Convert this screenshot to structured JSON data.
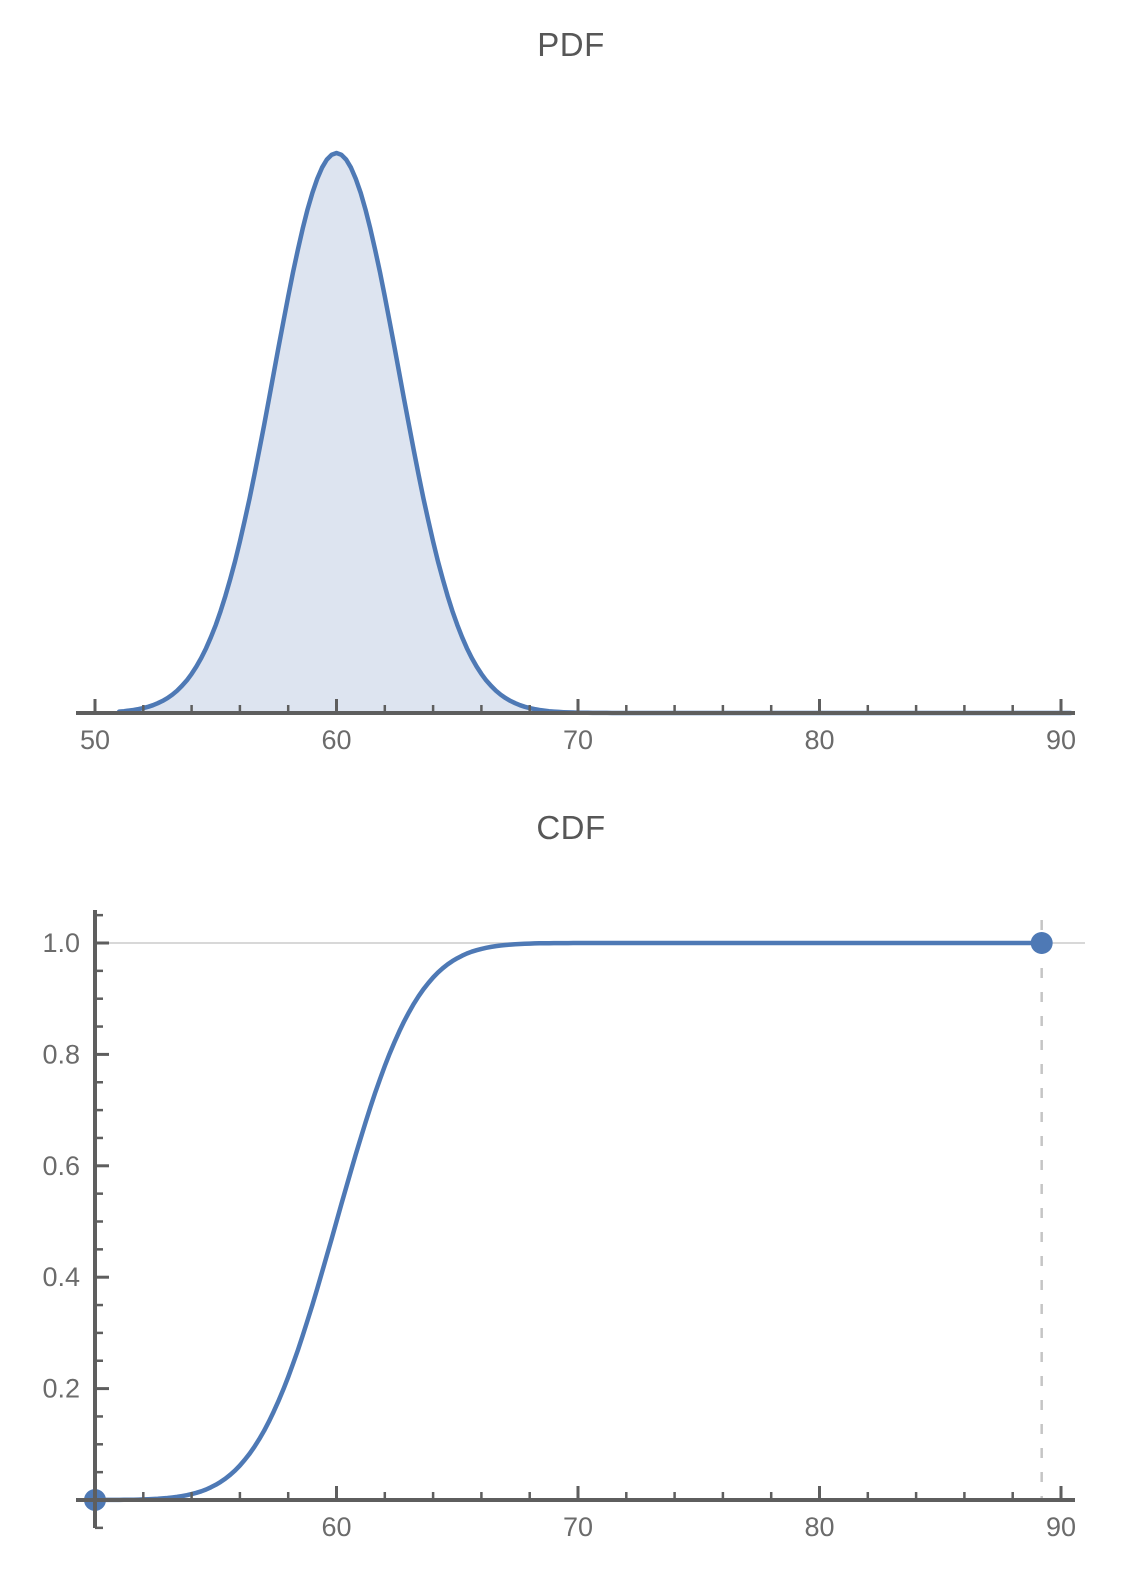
{
  "style": {
    "background": "#ffffff",
    "curve_color": "#4e79b5",
    "fill_color": "#dde4f0",
    "axis_color": "#5e5e5e",
    "tick_label_color": "#6b6b6b",
    "title_color": "#575757",
    "grid_color": "#cbcbcb",
    "dash_color": "#c5c5c5",
    "marker_color": "#4e79b5"
  },
  "chart_data": [
    {
      "type": "area",
      "title": "PDF",
      "xlabel": "",
      "ylabel": "",
      "distribution": {
        "family": "normal",
        "mean": 60,
        "sd": 2.6
      },
      "xlim": [
        49.2,
        90.6
      ],
      "x_major_ticks": [
        {
          "v": 50,
          "label": "50"
        },
        {
          "v": 60,
          "label": "60"
        },
        {
          "v": 70,
          "label": "70"
        },
        {
          "v": 80,
          "label": "80"
        },
        {
          "v": 90,
          "label": "90"
        }
      ],
      "x_minor_step": 2,
      "grid": false,
      "curve_range": [
        51,
        90.4
      ],
      "peak": {
        "x": 60,
        "y": 0.1534
      },
      "series": {
        "name": "pdf",
        "x": [
          50,
          51,
          52,
          53,
          54,
          55,
          56,
          57,
          58,
          59,
          60,
          61,
          62,
          63,
          64,
          65,
          66,
          67,
          68,
          69,
          70
        ],
        "y": [
          0.0001,
          0.0004,
          0.0013,
          0.0041,
          0.0107,
          0.0241,
          0.047,
          0.0789,
          0.1141,
          0.1425,
          0.1534,
          0.1425,
          0.1141,
          0.0789,
          0.047,
          0.0241,
          0.0107,
          0.0041,
          0.0013,
          0.0004,
          0.0001
        ]
      }
    },
    {
      "type": "line",
      "title": "CDF",
      "xlabel": "",
      "ylabel": "",
      "distribution": {
        "family": "normal",
        "mean": 60,
        "sd": 2.6
      },
      "xlim": [
        49.2,
        90.6
      ],
      "ylim": [
        -0.05,
        1.05
      ],
      "x_major_ticks": [
        {
          "v": 60,
          "label": "60"
        },
        {
          "v": 70,
          "label": "70"
        },
        {
          "v": 80,
          "label": "80"
        },
        {
          "v": 90,
          "label": "90"
        }
      ],
      "x_minor_step": 2,
      "y_major_ticks": [
        {
          "v": 0.2,
          "label": "0.2"
        },
        {
          "v": 0.4,
          "label": "0.4"
        },
        {
          "v": 0.6,
          "label": "0.6"
        },
        {
          "v": 0.8,
          "label": "0.8"
        },
        {
          "v": 1.0,
          "label": "1.0"
        }
      ],
      "y_minor_step": 0.05,
      "gridline_y": 1.0,
      "guide_line_x": 89.2,
      "markers": [
        {
          "x": 50,
          "y": 0
        },
        {
          "x": 89.2,
          "y": 1
        }
      ],
      "curve_range": [
        50,
        89.2
      ],
      "series": {
        "name": "cdf",
        "x": [
          50,
          51,
          52,
          53,
          54,
          55,
          56,
          57,
          58,
          59,
          60,
          61,
          62,
          63,
          64,
          65,
          66,
          67,
          68,
          69,
          70,
          89.2
        ],
        "y": [
          0.0001,
          0.0003,
          0.001,
          0.0035,
          0.0105,
          0.0272,
          0.062,
          0.1243,
          0.2209,
          0.3502,
          0.5,
          0.6498,
          0.7791,
          0.8757,
          0.938,
          0.9728,
          0.9895,
          0.9965,
          0.999,
          0.9997,
          0.9999,
          1.0
        ]
      }
    }
  ]
}
